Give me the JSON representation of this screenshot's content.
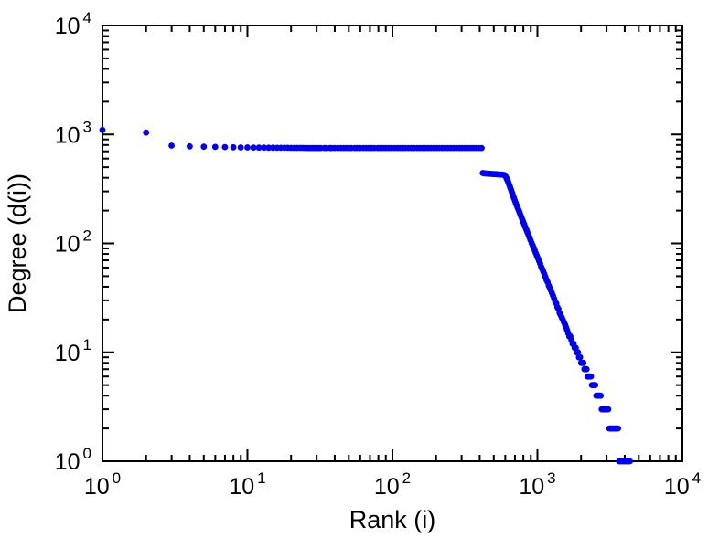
{
  "page": {
    "background": "#ffffff"
  },
  "chart_data": {
    "type": "scatter",
    "title": "",
    "xlabel": "Rank (i)",
    "ylabel": "Degree (d(i))",
    "x_scale": "log",
    "y_scale": "log",
    "xlim": [
      1,
      10000
    ],
    "ylim": [
      1,
      10000
    ],
    "x_tick_exponents": [
      0,
      1,
      2,
      3,
      4
    ],
    "y_tick_exponents": [
      0,
      1,
      2,
      3,
      4
    ],
    "grid": false,
    "legend": "none",
    "marker_color": "#0000ee",
    "marker_radius": 3.4,
    "frame_color": "#000000",
    "points": [
      [
        1,
        1100
      ],
      [
        2,
        1040
      ],
      [
        3,
        790
      ],
      [
        4,
        778
      ],
      [
        5,
        772
      ],
      [
        6,
        768
      ],
      [
        7,
        765
      ],
      [
        8,
        762
      ],
      [
        9,
        760
      ],
      [
        10,
        760
      ],
      [
        11,
        758
      ],
      [
        12,
        757
      ],
      [
        13,
        756
      ],
      [
        14,
        755
      ],
      [
        15,
        755
      ],
      [
        16,
        754
      ],
      [
        17,
        754
      ],
      [
        18,
        753
      ],
      [
        19,
        753
      ],
      [
        20,
        752
      ],
      [
        21,
        752
      ],
      [
        22,
        752
      ],
      [
        23,
        752
      ],
      [
        24,
        752
      ],
      [
        25,
        751
      ],
      [
        26,
        751
      ],
      [
        27,
        751
      ],
      [
        28,
        751
      ],
      [
        29,
        751
      ],
      [
        30,
        751
      ],
      [
        31,
        751
      ],
      [
        32,
        751
      ],
      [
        34,
        751
      ],
      [
        35,
        751
      ],
      [
        37,
        751
      ],
      [
        38,
        751
      ],
      [
        40,
        750
      ],
      [
        42,
        750
      ],
      [
        44,
        750
      ],
      [
        46,
        750
      ],
      [
        48,
        750
      ],
      [
        50,
        750
      ],
      [
        52,
        750
      ],
      [
        55,
        750
      ],
      [
        57,
        750
      ],
      [
        60,
        750
      ],
      [
        63,
        750
      ],
      [
        66,
        750
      ],
      [
        69,
        750
      ],
      [
        72,
        750
      ],
      [
        75,
        750
      ],
      [
        79,
        750
      ],
      [
        82,
        750
      ],
      [
        86,
        750
      ],
      [
        90,
        750
      ],
      [
        94,
        750
      ],
      [
        98,
        750
      ],
      [
        103,
        750
      ],
      [
        108,
        750
      ],
      [
        113,
        750
      ],
      [
        118,
        750
      ],
      [
        123,
        750
      ],
      [
        129,
        750
      ],
      [
        135,
        750
      ],
      [
        141,
        750
      ],
      [
        148,
        750
      ],
      [
        155,
        750
      ],
      [
        162,
        750
      ],
      [
        169,
        750
      ],
      [
        177,
        750
      ],
      [
        185,
        750
      ],
      [
        193,
        750
      ],
      [
        202,
        750
      ],
      [
        211,
        750
      ],
      [
        221,
        750
      ],
      [
        231,
        750
      ],
      [
        242,
        750
      ],
      [
        253,
        750
      ],
      [
        264,
        750
      ],
      [
        276,
        750
      ],
      [
        289,
        750
      ],
      [
        302,
        750
      ],
      [
        316,
        750
      ],
      [
        330,
        750
      ],
      [
        345,
        750
      ],
      [
        361,
        750
      ],
      [
        377,
        750
      ],
      [
        394,
        750
      ],
      [
        412,
        750
      ],
      [
        420,
        442
      ],
      [
        430,
        440
      ],
      [
        440,
        438
      ],
      [
        451,
        437
      ],
      [
        462,
        436
      ],
      [
        474,
        435
      ],
      [
        486,
        434
      ],
      [
        498,
        433
      ],
      [
        510,
        432
      ],
      [
        523,
        431
      ],
      [
        536,
        430
      ],
      [
        549,
        429
      ],
      [
        563,
        428
      ],
      [
        577,
        426
      ],
      [
        591,
        424
      ],
      [
        600,
        421
      ],
      [
        610,
        400
      ],
      [
        618,
        385
      ],
      [
        626,
        370
      ],
      [
        634,
        355
      ],
      [
        642,
        340
      ],
      [
        650,
        325
      ],
      [
        658,
        310
      ],
      [
        666,
        296
      ],
      [
        674,
        283
      ],
      [
        682,
        270
      ],
      [
        690,
        258
      ],
      [
        700,
        246
      ],
      [
        710,
        234
      ],
      [
        720,
        223
      ],
      [
        731,
        212
      ],
      [
        742,
        202
      ],
      [
        753,
        192
      ],
      [
        765,
        182
      ],
      [
        777,
        173
      ],
      [
        789,
        164
      ],
      [
        801,
        156
      ],
      [
        814,
        148
      ],
      [
        827,
        140
      ],
      [
        840,
        133
      ],
      [
        854,
        126
      ],
      [
        868,
        119
      ],
      [
        882,
        113
      ],
      [
        897,
        107
      ],
      [
        912,
        101
      ],
      [
        927,
        96
      ],
      [
        943,
        91
      ],
      [
        959,
        86
      ],
      [
        975,
        81
      ],
      [
        992,
        77
      ],
      [
        1009,
        73
      ],
      [
        1026,
        69
      ],
      [
        1044,
        65
      ],
      [
        1062,
        61
      ],
      [
        1080,
        58
      ],
      [
        1099,
        55
      ],
      [
        1118,
        52
      ],
      [
        1137,
        49
      ],
      [
        1157,
        46
      ],
      [
        1177,
        44
      ],
      [
        1197,
        41
      ],
      [
        1218,
        39
      ],
      [
        1239,
        37
      ],
      [
        1260,
        35
      ],
      [
        1282,
        33
      ],
      [
        1304,
        31
      ],
      [
        1327,
        29
      ],
      [
        1350,
        28
      ],
      [
        1373,
        26
      ],
      [
        1397,
        25
      ],
      [
        1421,
        23
      ],
      [
        1445,
        22
      ],
      [
        1470,
        21
      ],
      [
        1496,
        20
      ],
      [
        1522,
        19
      ],
      [
        1548,
        18
      ],
      [
        1575,
        17
      ],
      [
        1602,
        16
      ],
      [
        1630,
        15
      ],
      [
        1658,
        14
      ],
      [
        1687,
        14
      ],
      [
        1716,
        13
      ],
      [
        1746,
        12
      ],
      [
        1776,
        12
      ],
      [
        1807,
        11
      ],
      [
        1838,
        11
      ],
      [
        1870,
        10
      ],
      [
        1902,
        10
      ],
      [
        1935,
        9
      ],
      [
        1969,
        9
      ],
      [
        2003,
        8
      ],
      [
        2038,
        8
      ],
      [
        2073,
        8
      ],
      [
        2109,
        7
      ],
      [
        2146,
        7
      ],
      [
        2183,
        7
      ],
      [
        2221,
        6
      ],
      [
        2259,
        6
      ],
      [
        2298,
        6
      ],
      [
        2338,
        6
      ],
      [
        2378,
        5
      ],
      [
        2420,
        5
      ],
      [
        2462,
        5
      ],
      [
        2504,
        5
      ],
      [
        2548,
        4
      ],
      [
        2592,
        4
      ],
      [
        2637,
        4
      ],
      [
        2683,
        4
      ],
      [
        2729,
        4
      ],
      [
        2777,
        3
      ],
      [
        2825,
        3
      ],
      [
        2874,
        3
      ],
      [
        2924,
        3
      ],
      [
        2975,
        3
      ],
      [
        3026,
        3
      ],
      [
        3079,
        3
      ],
      [
        3132,
        2
      ],
      [
        3187,
        2
      ],
      [
        3242,
        2
      ],
      [
        3299,
        2
      ],
      [
        3356,
        2
      ],
      [
        3414,
        2
      ],
      [
        3473,
        2
      ],
      [
        3533,
        2
      ],
      [
        3594,
        2
      ],
      [
        3657,
        1
      ],
      [
        3720,
        1
      ],
      [
        3785,
        1
      ],
      [
        3851,
        1
      ],
      [
        3918,
        1
      ],
      [
        3986,
        1
      ],
      [
        4055,
        1
      ],
      [
        4126,
        1
      ],
      [
        4198,
        1
      ],
      [
        4271,
        1
      ],
      [
        4345,
        1
      ]
    ]
  }
}
